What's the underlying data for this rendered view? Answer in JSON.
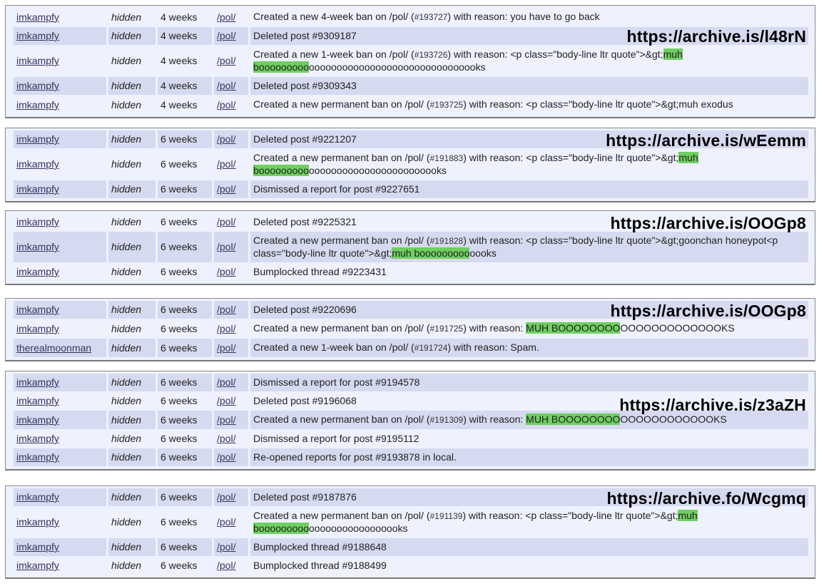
{
  "groups": [
    {
      "archive_url": "https://archive.is/l48rN",
      "rows": [
        {
          "user": "imkampfy",
          "visibility": "hidden",
          "age": "4 weeks",
          "board": "/pol/",
          "action": {
            "pre": "Created a new 4-week ban on /pol/ (",
            "id": "#193727",
            "mid": ") with reason: you have to go back",
            "hl": "",
            "post": ""
          }
        },
        {
          "user": "imkampfy",
          "visibility": "hidden",
          "age": "4 weeks",
          "board": "/pol/",
          "action": {
            "pre": "Deleted post #9309187",
            "id": "",
            "mid": "",
            "hl": "",
            "post": ""
          }
        },
        {
          "user": "imkampfy",
          "visibility": "hidden",
          "age": "4 weeks",
          "board": "/pol/",
          "action": {
            "pre": "Created a new 1-week ban on /pol/ (",
            "id": "#193726",
            "mid": ") with reason: <p class=\"body-line ltr quote\">&gt;",
            "hl": "muh booooooooo",
            "post": "ooooooooooooooooooooooooooooooks"
          }
        },
        {
          "user": "imkampfy",
          "visibility": "hidden",
          "age": "4 weeks",
          "board": "/pol/",
          "action": {
            "pre": "Deleted post #9309343",
            "id": "",
            "mid": "",
            "hl": "",
            "post": ""
          }
        },
        {
          "user": "imkampfy",
          "visibility": "hidden",
          "age": "4 weeks",
          "board": "/pol/",
          "action": {
            "pre": "Created a new permanent ban on /pol/ (",
            "id": "#193725",
            "mid": ") with reason: <p class=\"body-line ltr quote\">&gt;muh exodus",
            "hl": "",
            "post": ""
          }
        }
      ]
    },
    {
      "archive_url": "https://archive.is/wEemm",
      "rows": [
        {
          "user": "imkampfy",
          "visibility": "hidden",
          "age": "6 weeks",
          "board": "/pol/",
          "action": {
            "pre": "Deleted post #9221207",
            "id": "",
            "mid": "",
            "hl": "",
            "post": ""
          }
        },
        {
          "user": "imkampfy",
          "visibility": "hidden",
          "age": "6 weeks",
          "board": "/pol/",
          "action": {
            "pre": "Created a new permanent ban on /pol/ (",
            "id": "#191883",
            "mid": ") with reason: <p class=\"body-line ltr quote\">&gt;",
            "hl": "muh booooooooo",
            "post": "oooooooooooooooooooooooks"
          }
        },
        {
          "user": "imkampfy",
          "visibility": "hidden",
          "age": "6 weeks",
          "board": "/pol/",
          "action": {
            "pre": "Dismissed a report for post #9227651",
            "id": "",
            "mid": "",
            "hl": "",
            "post": ""
          }
        }
      ]
    },
    {
      "archive_url": "https://archive.is/OOGp8",
      "rows": [
        {
          "user": "imkampfy",
          "visibility": "hidden",
          "age": "6 weeks",
          "board": "/pol/",
          "action": {
            "pre": "Deleted post #9225321",
            "id": "",
            "mid": "",
            "hl": "",
            "post": ""
          }
        },
        {
          "user": "imkampfy",
          "visibility": "hidden",
          "age": "6 weeks",
          "board": "/pol/",
          "action": {
            "pre": "Created a new permanent ban on /pol/ (",
            "id": "#191828",
            "mid": ") with reason: <p class=\"body-line ltr quote\">&gt;goonchan honeypot<p class=\"body-line ltr quote\">&gt;",
            "hl": "muh booooooooo",
            "post": "oooks"
          }
        },
        {
          "user": "imkampfy",
          "visibility": "hidden",
          "age": "6 weeks",
          "board": "/pol/",
          "action": {
            "pre": "Bumplocked thread #9223431",
            "id": "",
            "mid": "",
            "hl": "",
            "post": ""
          }
        }
      ]
    },
    {
      "archive_url": "https://archive.is/OOGp8",
      "rows": [
        {
          "user": "imkampfy",
          "visibility": "hidden",
          "age": "6 weeks",
          "board": "/pol/",
          "action": {
            "pre": "Deleted post #9220696",
            "id": "",
            "mid": "",
            "hl": "",
            "post": ""
          }
        },
        {
          "user": "imkampfy",
          "visibility": "hidden",
          "age": "6 weeks",
          "board": "/pol/",
          "action": {
            "pre": "Created a new permanent ban on /pol/ (",
            "id": "#191725",
            "mid": ") with reason: ",
            "hl": "MUH BOOOOOOOO",
            "post": "OOOOOOOOOOOOOKS"
          }
        },
        {
          "user": "therealmoonman",
          "visibility": "hidden",
          "age": "6 weeks",
          "board": "/pol/",
          "action": {
            "pre": "Created a new 1-week ban on /pol/ (",
            "id": "#191724",
            "mid": ") with reason: Spam.",
            "hl": "",
            "post": ""
          }
        }
      ]
    },
    {
      "archive_url": "https://archive.is/z3aZH",
      "rows": [
        {
          "user": "imkampfy",
          "visibility": "hidden",
          "age": "6 weeks",
          "board": "/pol/",
          "action": {
            "pre": "Dismissed a report for post #9194578",
            "id": "",
            "mid": "",
            "hl": "",
            "post": ""
          }
        },
        {
          "user": "imkampfy",
          "visibility": "hidden",
          "age": "6 weeks",
          "board": "/pol/",
          "action": {
            "pre": "Deleted post #9196068",
            "id": "",
            "mid": "",
            "hl": "",
            "post": ""
          }
        },
        {
          "user": "imkampfy",
          "visibility": "hidden",
          "age": "6 weeks",
          "board": "/pol/",
          "action": {
            "pre": "Created a new permanent ban on /pol/ (",
            "id": "#191309",
            "mid": ") with reason: ",
            "hl": "MUH BOOOOOOOO",
            "post": "OOOOOOOOOOOOKS"
          }
        },
        {
          "user": "imkampfy",
          "visibility": "hidden",
          "age": "6 weeks",
          "board": "/pol/",
          "action": {
            "pre": "Dismissed a report for post #9195112",
            "id": "",
            "mid": "",
            "hl": "",
            "post": ""
          }
        },
        {
          "user": "imkampfy",
          "visibility": "hidden",
          "age": "6 weeks",
          "board": "/pol/",
          "action": {
            "pre": "Re-opened reports for post #9193878 in local.",
            "id": "",
            "mid": "",
            "hl": "",
            "post": ""
          }
        }
      ]
    },
    {
      "archive_url": "https://archive.fo/Wcgmq",
      "rows": [
        {
          "user": "imkampfy",
          "visibility": "hidden",
          "age": "6 weeks",
          "board": "/pol/",
          "action": {
            "pre": "Deleted post #9187876",
            "id": "",
            "mid": "",
            "hl": "",
            "post": ""
          }
        },
        {
          "user": "imkampfy",
          "visibility": "hidden",
          "age": "6 weeks",
          "board": "/pol/",
          "action": {
            "pre": "Created a new permanent ban on /pol/ (",
            "id": "#191139",
            "mid": ") with reason: <p class=\"body-line ltr quote\">&gt;",
            "hl": "muh booooooooo",
            "post": "ooooooooooooooooks"
          }
        },
        {
          "user": "imkampfy",
          "visibility": "hidden",
          "age": "6 weeks",
          "board": "/pol/",
          "action": {
            "pre": "Bumplocked thread #9188648",
            "id": "",
            "mid": "",
            "hl": "",
            "post": ""
          }
        },
        {
          "user": "imkampfy",
          "visibility": "hidden",
          "age": "6 weeks",
          "board": "/pol/",
          "action": {
            "pre": "Bumplocked thread #9188499",
            "id": "",
            "mid": "",
            "hl": "",
            "post": ""
          }
        }
      ]
    }
  ],
  "colors": {
    "row_light": "#eef2ff",
    "row_shaded": "#d6daf0",
    "highlight": "#6fcf60",
    "link": "#34345c"
  }
}
